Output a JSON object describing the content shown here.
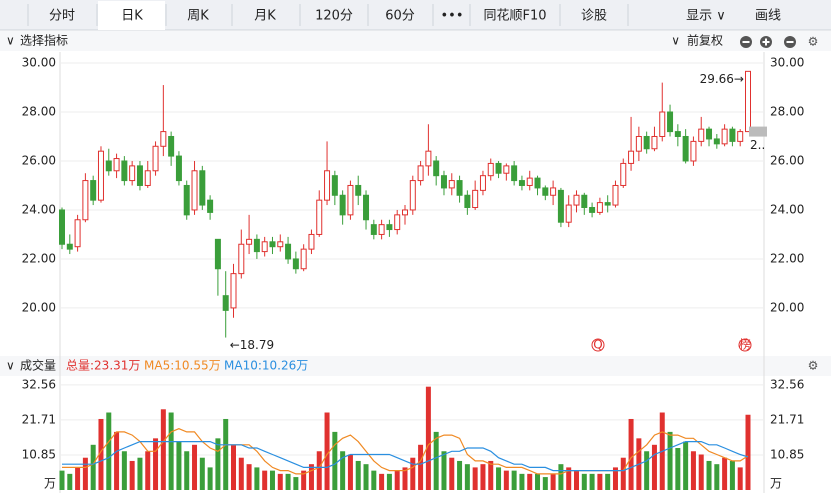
{
  "toolbar": {
    "tabs": [
      "分时",
      "日K",
      "周K",
      "月K",
      "120分",
      "60分",
      "•••",
      "同花顺F10",
      "诊股"
    ],
    "right": [
      "显示 ∨",
      "画线"
    ]
  },
  "panel_header": {
    "indicator": "选择指标",
    "adjust": "前复权"
  },
  "chart_data": [
    {
      "type": "candlestick",
      "up_color": "#e0312f",
      "down_color": "#3a9e3a",
      "open": [
        24.0,
        22.6,
        22.5,
        23.6,
        25.2,
        24.4,
        26.0,
        25.6,
        26.0,
        25.2,
        25.8,
        25.0,
        25.6,
        26.6,
        27.0,
        26.2,
        25.0,
        24.0,
        25.6,
        24.4,
        22.8,
        20.5,
        20.0,
        21.4,
        22.6,
        22.8,
        22.3,
        22.7,
        22.5,
        22.6,
        22.0,
        21.6,
        22.4,
        23.0,
        24.4,
        25.4,
        24.6,
        23.8,
        25.0,
        24.6,
        23.4,
        23.0,
        23.4,
        23.2,
        23.8,
        24.0,
        25.2,
        25.8,
        26.0,
        25.4,
        24.9,
        25.2,
        24.6,
        24.1,
        24.8,
        25.4,
        25.9,
        25.5,
        25.8,
        25.2,
        25.0,
        25.3,
        24.9,
        24.6,
        24.8,
        23.5,
        24.2,
        24.6,
        24.1,
        23.9,
        24.3,
        24.2,
        25.0,
        25.9,
        26.4,
        27.0,
        26.5,
        27.0,
        28.0,
        27.2,
        27.0,
        26.0,
        26.8,
        27.3,
        26.9,
        26.7,
        27.3,
        26.8,
        27.2
      ],
      "high": [
        24.1,
        23.0,
        23.8,
        25.5,
        25.4,
        26.6,
        26.5,
        26.3,
        26.2,
        26.0,
        26.0,
        26.0,
        26.8,
        29.1,
        27.2,
        26.4,
        25.2,
        26.0,
        25.8,
        24.6,
        22.8,
        21.5,
        21.8,
        23.2,
        23.8,
        23.0,
        22.9,
        22.9,
        23.0,
        22.9,
        22.3,
        22.6,
        23.2,
        24.8,
        26.8,
        25.6,
        24.8,
        25.2,
        25.4,
        24.8,
        23.6,
        23.6,
        23.6,
        24.0,
        24.2,
        25.4,
        26.0,
        27.5,
        26.2,
        25.6,
        25.5,
        25.4,
        24.8,
        25.2,
        25.6,
        26.1,
        26.0,
        25.9,
        26.0,
        25.4,
        25.6,
        25.4,
        25.0,
        25.2,
        24.9,
        24.6,
        24.8,
        24.7,
        24.3,
        24.5,
        24.6,
        25.2,
        26.1,
        27.8,
        27.4,
        27.2,
        27.4,
        29.2,
        28.3,
        27.5,
        27.3,
        27.0,
        27.8,
        27.4,
        27.1,
        27.5,
        27.4,
        27.3,
        29.66
      ],
      "low": [
        22.4,
        22.2,
        22.3,
        23.5,
        24.2,
        24.3,
        25.4,
        25.3,
        25.0,
        25.0,
        24.8,
        24.9,
        25.4,
        26.2,
        25.8,
        25.0,
        23.6,
        23.8,
        24.0,
        23.6,
        20.5,
        18.79,
        19.6,
        21.2,
        22.2,
        22.0,
        22.1,
        22.2,
        22.3,
        21.8,
        21.4,
        21.5,
        22.2,
        22.9,
        24.2,
        24.2,
        23.4,
        23.6,
        24.2,
        23.2,
        22.8,
        22.8,
        22.9,
        23.0,
        23.4,
        23.8,
        25.0,
        25.4,
        25.0,
        24.6,
        24.6,
        24.3,
        23.8,
        24.0,
        24.6,
        25.2,
        25.3,
        25.2,
        25.0,
        24.8,
        24.8,
        24.6,
        24.4,
        24.2,
        23.3,
        23.3,
        23.9,
        23.8,
        23.7,
        23.8,
        23.9,
        24.1,
        24.9,
        25.6,
        26.0,
        26.3,
        26.4,
        26.8,
        27.0,
        26.6,
        25.9,
        25.8,
        26.6,
        26.6,
        26.5,
        26.6,
        26.6,
        26.6,
        27.2
      ],
      "close": [
        22.6,
        22.4,
        23.6,
        25.2,
        24.4,
        26.4,
        25.6,
        26.1,
        25.2,
        25.8,
        25.0,
        25.6,
        26.6,
        27.2,
        26.2,
        25.2,
        23.8,
        25.6,
        24.2,
        23.9,
        21.6,
        19.9,
        21.4,
        22.6,
        22.8,
        22.3,
        22.7,
        22.5,
        22.7,
        22.0,
        21.6,
        22.4,
        23.0,
        24.4,
        25.6,
        24.6,
        23.8,
        25.0,
        24.6,
        23.6,
        23.0,
        23.4,
        23.2,
        23.8,
        24.0,
        25.2,
        25.8,
        26.4,
        25.4,
        24.9,
        25.2,
        24.6,
        24.1,
        24.8,
        25.4,
        25.9,
        25.5,
        25.8,
        25.2,
        25.0,
        25.3,
        24.9,
        24.6,
        24.9,
        23.5,
        24.2,
        24.6,
        24.1,
        23.9,
        24.3,
        24.2,
        25.0,
        25.9,
        26.4,
        27.0,
        26.5,
        27.0,
        28.0,
        27.2,
        27.0,
        26.0,
        26.8,
        27.3,
        26.9,
        26.7,
        27.3,
        26.8,
        27.2,
        29.66
      ],
      "ylim": [
        18.2,
        30.45
      ],
      "yticks": [
        {
          "value": 20,
          "label": "20.00"
        },
        {
          "value": 22,
          "label": "22.00"
        },
        {
          "value": 24,
          "label": "24.00"
        },
        {
          "value": 26,
          "label": "26.00"
        },
        {
          "value": 28,
          "label": "28.00"
        },
        {
          "value": 30,
          "label": "30.00"
        }
      ],
      "max_label": "29.66→",
      "min_label": "←18.79",
      "last_label": "2..",
      "markers": [
        "Q",
        "榜"
      ]
    },
    {
      "type": "bar",
      "title": "成交量",
      "total_label": "总量:23.31万",
      "values": [
        6,
        5,
        7,
        10,
        14,
        22,
        24,
        18,
        12,
        9,
        10,
        12,
        16,
        25,
        24,
        15,
        12,
        14,
        10,
        7,
        16,
        22,
        14,
        10,
        8,
        7,
        6,
        6,
        5,
        5,
        4,
        6,
        8,
        12,
        24,
        18,
        12,
        11,
        9,
        8,
        6,
        5,
        5,
        6,
        7,
        10,
        14,
        32,
        18,
        12,
        10,
        9,
        8,
        7,
        8,
        9,
        7,
        6,
        6,
        5,
        5,
        5,
        4,
        5,
        8,
        7,
        6,
        5,
        5,
        5,
        5,
        7,
        10,
        22,
        16,
        12,
        14,
        24,
        18,
        13,
        15,
        12,
        11,
        9,
        8,
        10,
        9,
        7,
        23.31
      ],
      "series": [
        {
          "name": "MA5:10.55万",
          "color": "#f08a24",
          "values": [
            7,
            7,
            7,
            7,
            8,
            12,
            15,
            18,
            18,
            17,
            15,
            12,
            12,
            15,
            18,
            19,
            18,
            18,
            15,
            13,
            12,
            14,
            14,
            14,
            14,
            12,
            9,
            7,
            6,
            6,
            5,
            5,
            6,
            7,
            11,
            14,
            16,
            17,
            15,
            12,
            9,
            7,
            6,
            6,
            6,
            7,
            9,
            14,
            16,
            17,
            17,
            16,
            11,
            9,
            9,
            8,
            8,
            7,
            7,
            7,
            6,
            5,
            5,
            5,
            5,
            6,
            6,
            6,
            6,
            6,
            6,
            6,
            6,
            10,
            12,
            14,
            17,
            18,
            17,
            17,
            16,
            16,
            14,
            12,
            11,
            10,
            9,
            9,
            10.55
          ]
        },
        {
          "name": "MA10:10.26万",
          "color": "#2a8fe0",
          "values": [
            8,
            8,
            8,
            8,
            8,
            9,
            10,
            12,
            13,
            14,
            15,
            15,
            15,
            15,
            15,
            15,
            15,
            15,
            15,
            15,
            14,
            14,
            14,
            14,
            13,
            13,
            12,
            11,
            10,
            9,
            8,
            7,
            7,
            7,
            7,
            8,
            10,
            11,
            11,
            11,
            11,
            11,
            11,
            10,
            9,
            8,
            8,
            9,
            10,
            11,
            12,
            12,
            13,
            13,
            13,
            12,
            10,
            9,
            8,
            8,
            7,
            7,
            7,
            6,
            6,
            6,
            6,
            6,
            6,
            6,
            6,
            6,
            6,
            7,
            8,
            9,
            11,
            12,
            13,
            14,
            15,
            15,
            15,
            14,
            14,
            13,
            12,
            11,
            10.26
          ]
        }
      ],
      "ylim": [
        0,
        35
      ],
      "yticks": [
        10.85,
        21.71,
        32.56
      ],
      "unit": "万"
    }
  ]
}
